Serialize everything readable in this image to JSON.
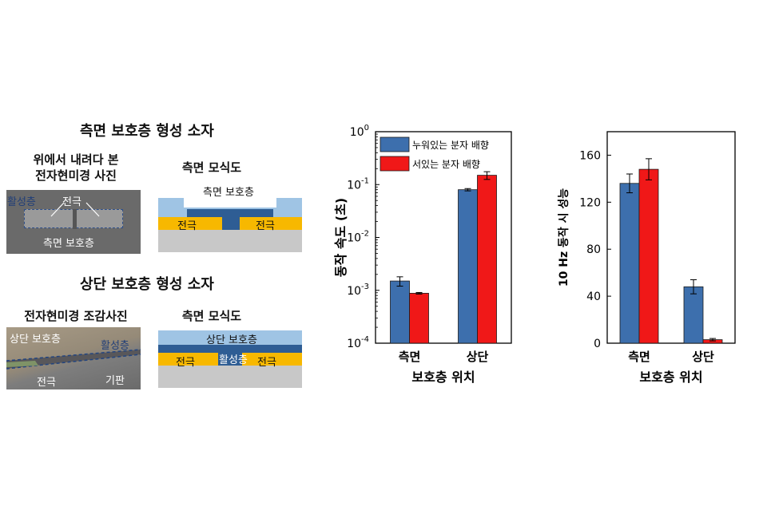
{
  "left_panel": {
    "top_section": {
      "title": "측면 보호층 형성 소자",
      "photo_caption": "위에서 내려다 본\n전자현미경 사진",
      "photo_labels": {
        "active": "활성층",
        "electrode": "전극",
        "side_protect": "측면 보호층"
      },
      "schematic_title": "측면 모식도",
      "schematic_labels": {
        "protect": "측면 보호층",
        "electrode_left": "전극",
        "electrode_right": "전극"
      }
    },
    "bottom_section": {
      "title": "상단 보호층 형성 소자",
      "photo_caption": "전자현미경 조감사진",
      "photo_labels": {
        "top_protect": "상단 보호층",
        "active": "활성층",
        "electrode": "전극",
        "substrate": "기판"
      },
      "schematic_title": "측면 모식도",
      "schematic_labels": {
        "top_protect": "상단 보호층",
        "electrode_left": "전극",
        "active": "활성층",
        "electrode_right": "전극"
      }
    }
  },
  "colors": {
    "blue": "#3d6fad",
    "red": "#f01818",
    "gold": "#f7b800",
    "lightblue": "#9fc4e4",
    "navy": "#2e5d94",
    "gray": "#c8c8c8"
  },
  "chart_data": [
    {
      "type": "bar",
      "xlabel": "보호층 위치",
      "ylabel": "동작 속도 (초)",
      "yscale": "log",
      "ylim": [
        0.0001,
        1
      ],
      "yticks": [
        "10^0",
        "10^-1",
        "10^-2",
        "10^-3",
        "10^-4"
      ],
      "categories": [
        "측면",
        "상단"
      ],
      "legend_position": "top-left",
      "series": [
        {
          "name": "누워있는 분자 배향",
          "color": "#3d6fad",
          "values": [
            0.0015,
            0.08
          ],
          "errors": [
            0.0003,
            0.004
          ]
        },
        {
          "name": "서있는 분자 배향",
          "color": "#f01818",
          "values": [
            0.00088,
            0.15
          ],
          "errors": [
            3e-05,
            0.025
          ]
        }
      ]
    },
    {
      "type": "bar",
      "xlabel": "보호층 위치",
      "ylabel": "10 Hz 동작 시 성능",
      "ylim": [
        0,
        180
      ],
      "yticks": [
        0,
        40,
        80,
        120,
        160
      ],
      "categories": [
        "측면",
        "상단"
      ],
      "series": [
        {
          "color": "#3d6fad",
          "values": [
            136,
            48
          ],
          "errors": [
            8,
            6
          ]
        },
        {
          "color": "#f01818",
          "values": [
            148,
            3
          ],
          "errors": [
            9,
            1
          ]
        }
      ]
    }
  ]
}
